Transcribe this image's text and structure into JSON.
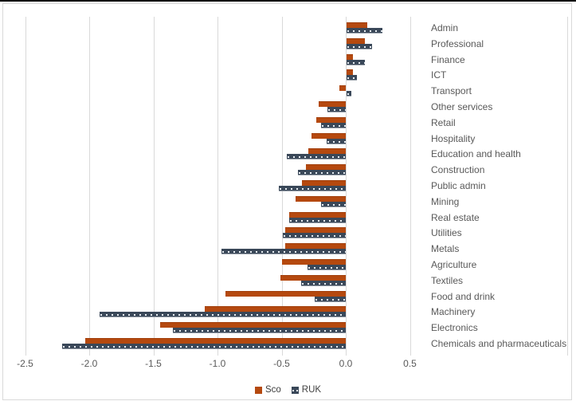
{
  "chart_data": {
    "type": "bar",
    "orientation": "horizontal",
    "title": "",
    "xlabel": "",
    "ylabel": "",
    "xlim": [
      -2.5,
      0.5
    ],
    "grid": true,
    "legend_position": "bottom",
    "x_ticks": [
      "-2.5",
      "-2.0",
      "-1.5",
      "-1.0",
      "-0.5",
      "0.0",
      "0.5"
    ],
    "x_tick_values": [
      -2.5,
      -2.0,
      -1.5,
      -1.0,
      -0.5,
      0.0,
      0.5
    ],
    "categories": [
      "Admin",
      "Professional",
      "Finance",
      "ICT",
      "Transport",
      "Other services",
      "Retail",
      "Hospitality",
      "Education and health",
      "Construction",
      "Public admin",
      "Mining",
      "Real estate",
      "Utilities",
      "Metals",
      "Agriculture",
      "Textiles",
      "Food and drink",
      "Machinery",
      "Electronics",
      "Chemicals and pharmaceuticals"
    ],
    "series": [
      {
        "name": "Sco",
        "color": "#B5490F",
        "pattern": "solid",
        "values": [
          0.16,
          0.14,
          0.05,
          0.05,
          -0.05,
          -0.21,
          -0.23,
          -0.27,
          -0.29,
          -0.31,
          -0.34,
          -0.39,
          -0.44,
          -0.47,
          -0.47,
          -0.5,
          -0.51,
          -0.94,
          -1.1,
          -1.45,
          -2.03
        ]
      },
      {
        "name": "RUK",
        "color": "#3A4859",
        "pattern": "white-dotted",
        "values": [
          0.28,
          0.2,
          0.14,
          0.08,
          0.04,
          -0.14,
          -0.19,
          -0.15,
          -0.46,
          -0.37,
          -0.52,
          -0.19,
          -0.44,
          -0.49,
          -0.97,
          -0.3,
          -0.35,
          -0.24,
          -1.92,
          -1.35,
          -2.21
        ]
      }
    ],
    "colors": {
      "gridline": "#D9D9D9",
      "axis_text": "#595959",
      "panel_border": "#D9D9D9",
      "sco": "#B5490F",
      "ruk": "#3A4859"
    }
  }
}
